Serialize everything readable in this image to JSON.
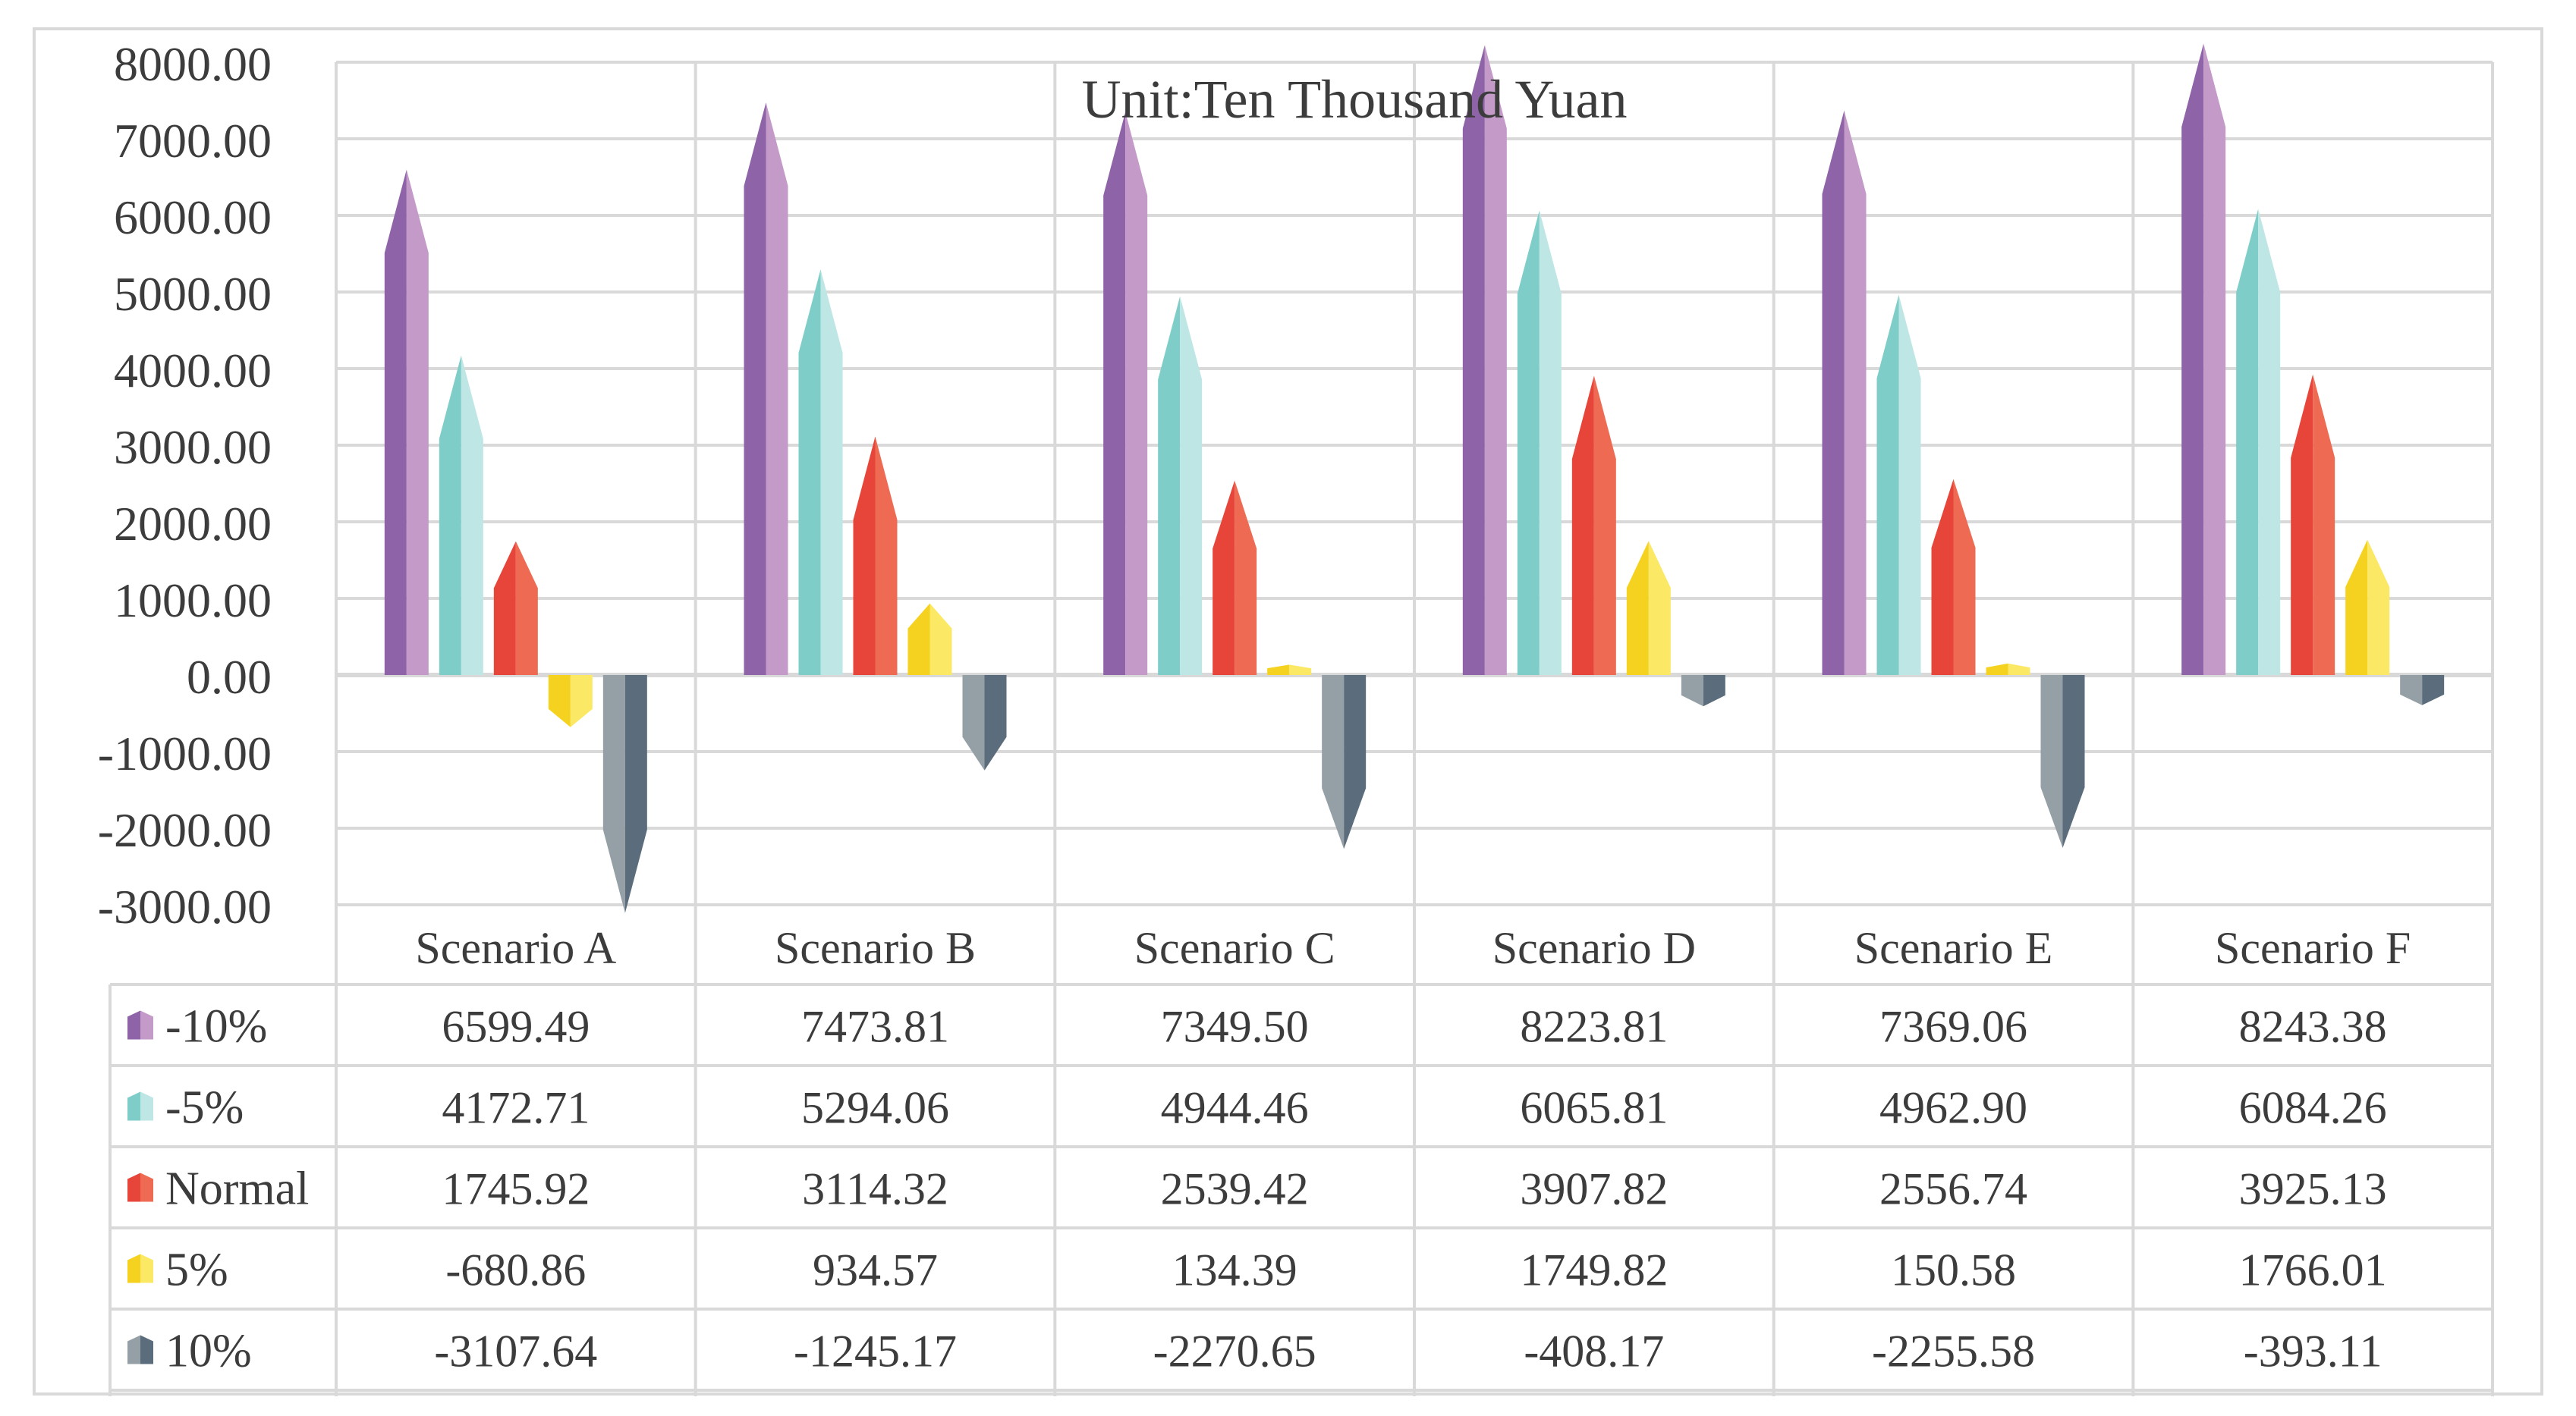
{
  "chart_data": {
    "type": "bar",
    "title": "Unit:Ten Thousand Yuan",
    "xlabel": "",
    "ylabel": "",
    "ylim": [
      -3000,
      8000
    ],
    "ytick_step": 1000,
    "ytick_labels": [
      "8000.00",
      "7000.00",
      "6000.00",
      "5000.00",
      "4000.00",
      "3000.00",
      "2000.00",
      "1000.00",
      "0.00",
      "-1000.00",
      "-2000.00",
      "-3000.00"
    ],
    "categories": [
      "Scenario A",
      "Scenario B",
      "Scenario C",
      "Scenario D",
      "Scenario E",
      "Scenario F"
    ],
    "series": [
      {
        "name": "-10%",
        "color_dark": "#8e63a8",
        "color_light": "#c49ac9",
        "values": [
          "6599.49",
          "7473.81",
          "7349.50",
          "8223.81",
          "7369.06",
          "8243.38"
        ]
      },
      {
        "name": "-5%",
        "color_dark": "#7ecdc8",
        "color_light": "#bde6e4",
        "values": [
          "4172.71",
          "5294.06",
          "4944.46",
          "6065.81",
          "4962.90",
          "6084.26"
        ]
      },
      {
        "name": "Normal",
        "color_dark": "#e8453a",
        "color_light": "#ee6a52",
        "values": [
          "1745.92",
          "3114.32",
          "2539.42",
          "3907.82",
          "2556.74",
          "3925.13"
        ]
      },
      {
        "name": "5%",
        "color_dark": "#f5d21f",
        "color_light": "#fbe865",
        "values": [
          "-680.86",
          "934.57",
          "134.39",
          "1749.82",
          "150.58",
          "1766.01"
        ]
      },
      {
        "name": "10%",
        "color_dark": "#95a0a6",
        "color_light": "#5b6d7c",
        "values": [
          "-3107.64",
          "-1245.17",
          "-2270.65",
          "-408.17",
          "-2255.58",
          "-393.11"
        ]
      }
    ],
    "grid": true,
    "legend": "data-table"
  },
  "colors": {
    "grid": "#d9d9d9",
    "text": "#3c3c3c"
  }
}
